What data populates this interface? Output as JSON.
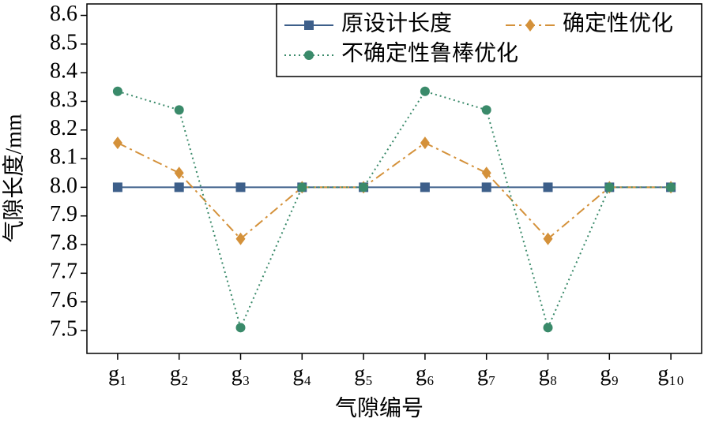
{
  "chart_data": {
    "type": "line",
    "x_label": "气隙编号",
    "y_label": "气隙长度/mm",
    "categories": [
      "g₁",
      "g₂",
      "g₃",
      "g₄",
      "g₅",
      "g₆",
      "g₇",
      "g₈",
      "g₉",
      "g₁₀"
    ],
    "series": [
      {
        "name": "原设计长度",
        "color": "#3d5f8a",
        "marker": "square",
        "linestyle": "solid",
        "values": [
          8.0,
          8.0,
          8.0,
          8.0,
          8.0,
          8.0,
          8.0,
          8.0,
          8.0,
          8.0
        ]
      },
      {
        "name": "确定性优化",
        "color": "#d4913a",
        "marker": "diamond",
        "linestyle": "dashdot",
        "values": [
          8.155,
          8.05,
          7.82,
          8.0,
          8.0,
          8.155,
          8.05,
          7.82,
          8.0,
          8.0
        ]
      },
      {
        "name": "不确定性鲁棒优化",
        "color": "#3a8a6a",
        "marker": "circle",
        "linestyle": "dotted",
        "values": [
          8.335,
          8.27,
          7.51,
          8.0,
          8.0,
          8.335,
          8.27,
          7.51,
          8.0,
          8.0
        ]
      }
    ],
    "ylim": [
      7.42,
      8.64
    ],
    "yticks": [
      7.5,
      7.6,
      7.7,
      7.8,
      7.9,
      {
        "value": 8.0,
        "label": "8.0"
      },
      8.1,
      8.2,
      8.3,
      8.4,
      8.5,
      8.6
    ],
    "legend": "upper right"
  }
}
